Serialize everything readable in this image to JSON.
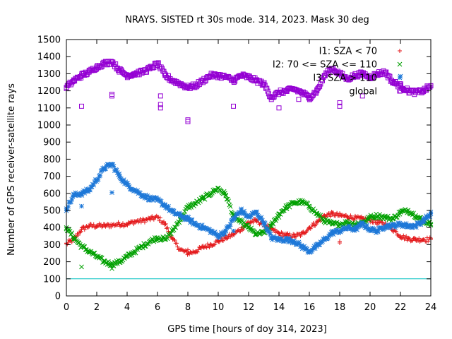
{
  "chart_data": {
    "type": "scatter",
    "title": "NRAYS. SISTED rt 30s mode. 314, 2023. Mask 30 deg",
    "xlabel": "GPS time [hours of doy 314, 2023]",
    "ylabel": "Number of GPS receiver-satellite rays",
    "xlim": [
      0,
      24
    ],
    "ylim": [
      0,
      1500
    ],
    "xticks": [
      0,
      2,
      4,
      6,
      8,
      10,
      12,
      14,
      16,
      18,
      20,
      22,
      24
    ],
    "yticks": [
      0,
      100,
      200,
      300,
      400,
      500,
      600,
      700,
      800,
      900,
      1000,
      1100,
      1200,
      1300,
      1400,
      1500
    ],
    "legend_position": "top-right",
    "reference_line": {
      "y": 100,
      "color": "#00c0c0"
    },
    "series": [
      {
        "name": "I1: SZA < 70",
        "color": "#e41a1c",
        "marker": "+",
        "x": [
          0,
          0.5,
          1,
          1.5,
          2,
          2.5,
          3,
          3.5,
          4,
          4.5,
          5,
          5.5,
          6,
          6.5,
          7,
          7.5,
          8,
          8.5,
          9,
          9.5,
          10,
          10.5,
          11,
          11.5,
          12,
          12.5,
          13,
          13.5,
          14,
          14.5,
          15,
          15.5,
          16,
          16.5,
          17,
          17.5,
          18,
          18.5,
          19,
          19.5,
          20,
          20.5,
          21,
          21.5,
          22,
          22.5,
          23,
          23.5,
          24
        ],
        "y": [
          305,
          330,
          390,
          410,
          410,
          410,
          415,
          420,
          420,
          435,
          440,
          450,
          460,
          420,
          330,
          270,
          250,
          260,
          285,
          300,
          320,
          340,
          360,
          390,
          430,
          440,
          420,
          390,
          365,
          355,
          350,
          360,
          400,
          430,
          470,
          480,
          470,
          465,
          455,
          450,
          445,
          430,
          420,
          390,
          350,
          335,
          330,
          330,
          330
        ]
      },
      {
        "name": "I2: 70 <= SZA <= 110",
        "color": "#00a000",
        "marker": "x",
        "x": [
          0,
          0.5,
          1,
          1.5,
          2,
          2.5,
          3,
          3.5,
          4,
          4.5,
          5,
          5.5,
          6,
          6.5,
          7,
          7.5,
          8,
          8.5,
          9,
          9.5,
          10,
          10.5,
          11,
          11.5,
          12,
          12.5,
          13,
          13.5,
          14,
          14.5,
          15,
          15.5,
          16,
          16.5,
          17,
          17.5,
          18,
          18.5,
          19,
          19.5,
          20,
          20.5,
          21,
          21.5,
          22,
          22.5,
          23,
          23.5,
          24
        ],
        "y": [
          400,
          340,
          290,
          260,
          230,
          200,
          185,
          200,
          230,
          260,
          290,
          320,
          340,
          330,
          380,
          450,
          520,
          540,
          570,
          600,
          630,
          590,
          470,
          430,
          400,
          360,
          370,
          410,
          480,
          520,
          545,
          550,
          525,
          480,
          440,
          420,
          420,
          430,
          420,
          430,
          460,
          470,
          460,
          450,
          490,
          500,
          470,
          440,
          420
        ]
      },
      {
        "name": "I3: SZA > 110",
        "color": "#1e78d8",
        "marker": "*",
        "x": [
          0,
          0.5,
          1,
          1.5,
          2,
          2.5,
          3,
          3.5,
          4,
          4.5,
          5,
          5.5,
          6,
          6.5,
          7,
          7.5,
          8,
          8.5,
          9,
          9.5,
          10,
          10.5,
          11,
          11.5,
          12,
          12.5,
          13,
          13.5,
          14,
          14.5,
          15,
          15.5,
          16,
          16.5,
          17,
          17.5,
          18,
          18.5,
          19,
          19.5,
          20,
          20.5,
          21,
          21.5,
          22,
          22.5,
          23,
          23.5,
          24
        ],
        "y": [
          510,
          590,
          600,
          620,
          680,
          750,
          770,
          700,
          650,
          620,
          590,
          570,
          560,
          530,
          490,
          470,
          450,
          420,
          400,
          380,
          350,
          380,
          450,
          500,
          460,
          490,
          430,
          340,
          330,
          330,
          320,
          290,
          260,
          290,
          330,
          370,
          380,
          400,
          390,
          420,
          390,
          380,
          410,
          410,
          420,
          410,
          410,
          440,
          480
        ]
      },
      {
        "name": "global",
        "color": "#9400d3",
        "marker": "square",
        "x": [
          0,
          0.5,
          1,
          1.5,
          2,
          2.5,
          3,
          3.5,
          4,
          4.5,
          5,
          5.5,
          6,
          6.5,
          7,
          7.5,
          8,
          8.5,
          9,
          9.5,
          10,
          10.5,
          11,
          11.5,
          12,
          12.5,
          13,
          13.5,
          14,
          14.5,
          15,
          15.5,
          16,
          16.5,
          17,
          17.5,
          18,
          18.5,
          19,
          19.5,
          20,
          20.5,
          21,
          21.5,
          22,
          22.5,
          23,
          23.5,
          24
        ],
        "y": [
          1220,
          1260,
          1290,
          1310,
          1340,
          1360,
          1370,
          1320,
          1290,
          1300,
          1310,
          1330,
          1360,
          1290,
          1260,
          1240,
          1220,
          1230,
          1260,
          1290,
          1290,
          1280,
          1260,
          1290,
          1280,
          1260,
          1240,
          1160,
          1190,
          1200,
          1210,
          1190,
          1160,
          1200,
          1290,
          1330,
          1300,
          1270,
          1290,
          1300,
          1280,
          1300,
          1310,
          1250,
          1230,
          1200,
          1190,
          1200,
          1230
        ]
      }
    ],
    "outliers": [
      {
        "series": "global",
        "x": 1,
        "y": 1110
      },
      {
        "series": "global",
        "x": 3,
        "y": 1180
      },
      {
        "series": "global",
        "x": 3,
        "y": 1170
      },
      {
        "series": "global",
        "x": 6.2,
        "y": 1170
      },
      {
        "series": "global",
        "x": 6.2,
        "y": 1120
      },
      {
        "series": "global",
        "x": 6.2,
        "y": 1100
      },
      {
        "series": "global",
        "x": 8,
        "y": 1030
      },
      {
        "series": "global",
        "x": 8,
        "y": 1020
      },
      {
        "series": "global",
        "x": 11,
        "y": 1110
      },
      {
        "series": "global",
        "x": 14,
        "y": 1100
      },
      {
        "series": "global",
        "x": 15.3,
        "y": 1150
      },
      {
        "series": "global",
        "x": 18,
        "y": 1130
      },
      {
        "series": "global",
        "x": 18,
        "y": 1110
      },
      {
        "series": "global",
        "x": 19.5,
        "y": 1170
      },
      {
        "series": "global",
        "x": 22,
        "y": 1200
      },
      {
        "series": "I3: SZA > 110",
        "x": 1,
        "y": 525
      },
      {
        "series": "I3: SZA > 110",
        "x": 3,
        "y": 605
      },
      {
        "series": "I3: SZA > 110",
        "x": 11,
        "y": 380
      },
      {
        "series": "I3: SZA > 110",
        "x": 22,
        "y": 1285
      },
      {
        "series": "I2: 70 <= SZA <= 110",
        "x": 1,
        "y": 170
      },
      {
        "series": "I2: 70 <= SZA <= 110",
        "x": 3,
        "y": 160
      },
      {
        "series": "I2: 70 <= SZA <= 110",
        "x": 14,
        "y": 460
      },
      {
        "series": "I1: SZA < 70",
        "x": 8,
        "y": 270
      },
      {
        "series": "I1: SZA < 70",
        "x": 18,
        "y": 320
      },
      {
        "series": "I1: SZA < 70",
        "x": 18,
        "y": 310
      }
    ]
  }
}
